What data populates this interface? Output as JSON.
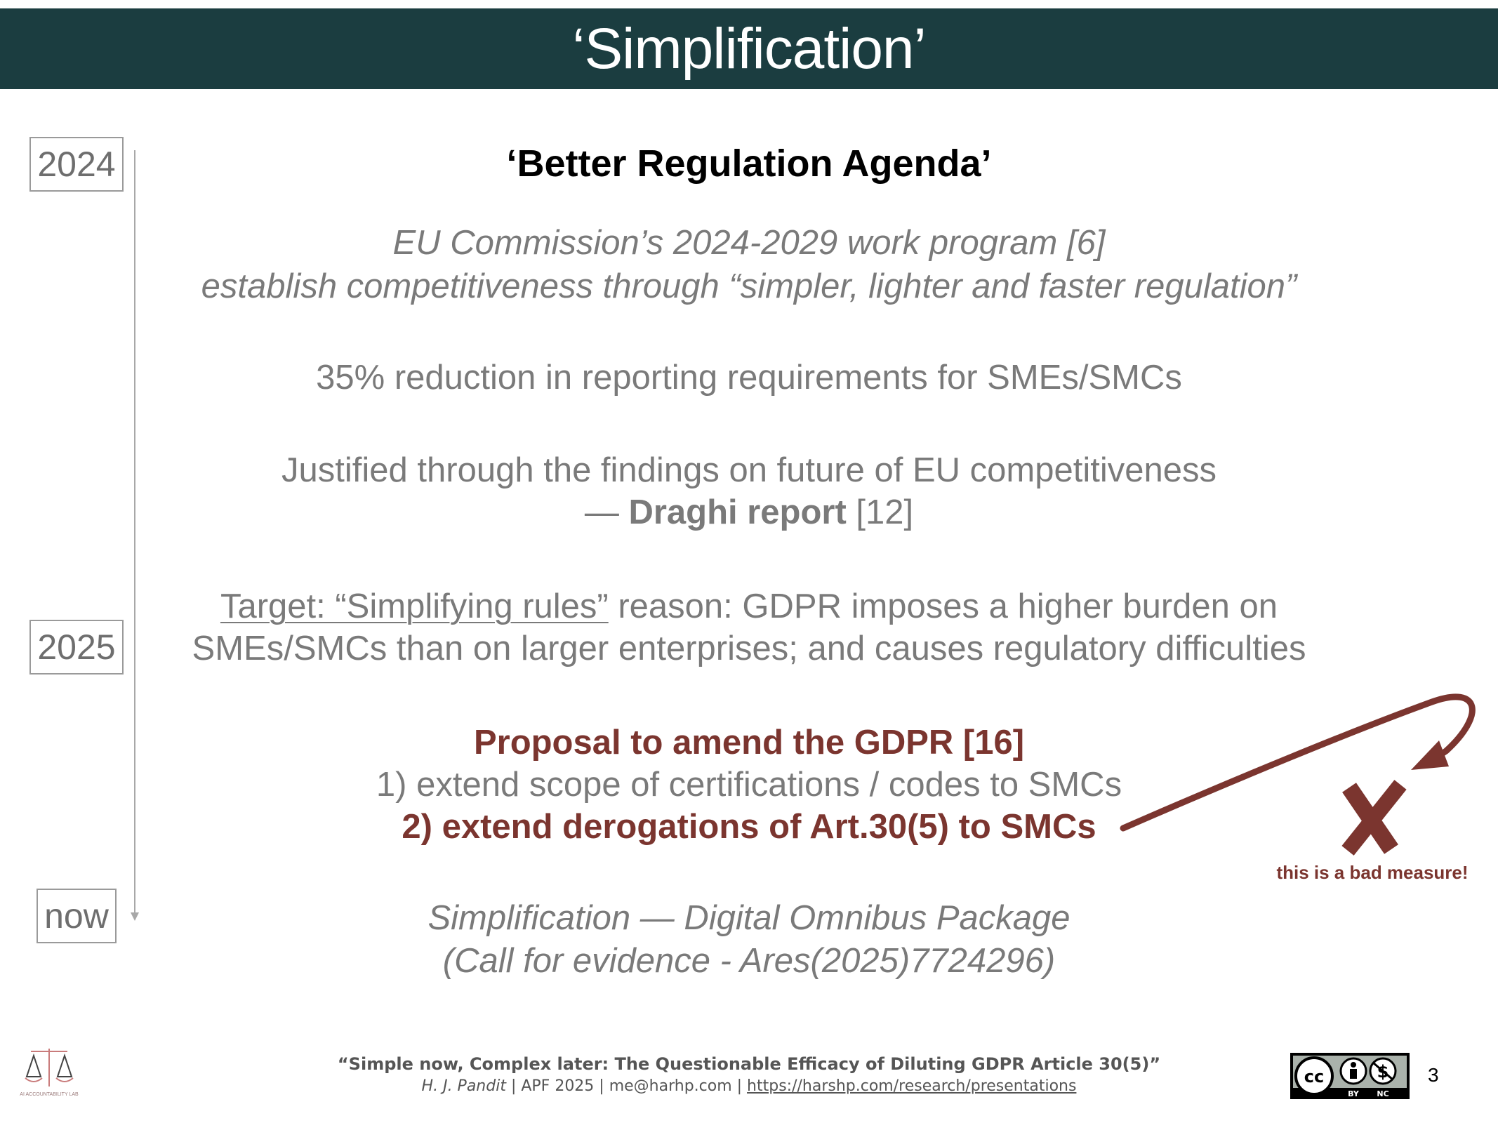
{
  "header": {
    "title": "‘Simplification’"
  },
  "timeline": {
    "years": [
      "2024",
      "2025",
      "now"
    ]
  },
  "content": {
    "heading": "‘Better Regulation Agenda’",
    "work_program_line1": "EU Commission’s 2024-2029 work program [6]",
    "work_program_line2": "establish competitiveness through “simpler, lighter and faster regulation”",
    "reduction": "35% reduction in reporting requirements for SMEs/SMCs",
    "justified_line1": "Justified through the findings on future of EU competitiveness",
    "justified_dash": "— ",
    "justified_bold": "Draghi report",
    "justified_ref": " [12]",
    "target_underlined": "Target: “Simplifying rules”",
    "target_rest": " reason: GDPR imposes a higher burden on",
    "target_line2": "SMEs/SMCs than on larger enterprises; and causes regulatory difficulties",
    "proposal_title": "Proposal to amend the GDPR [16]",
    "proposal_item1": "1) extend scope of certifications / codes to SMCs",
    "proposal_item2": "2) extend derogations of Art.30(5) to SMCs",
    "omnibus_line1": "Simplification — Digital Omnibus Package",
    "omnibus_line2": "(Call for evidence - Ares(2025)7724296)"
  },
  "annotation": {
    "text": "this is a bad measure!",
    "color": "#7b352f"
  },
  "footer": {
    "title": "“Simple now, Complex later: The Questionable Efficacy of Diluting GDPR Article 30(5)”",
    "author": "H. J. Pandit",
    "details": " | APF 2025 | me@harhp.com | ",
    "link": "https://harshp.com/research/presentations",
    "page_number": "3",
    "logo_text": "AI ACCOUNTABILITY LAB",
    "license_labels": [
      "BY",
      "NC"
    ]
  },
  "colors": {
    "header_bg": "#1b3d40",
    "accent_red": "#7b352f",
    "body_grey": "#7a7a7a"
  }
}
